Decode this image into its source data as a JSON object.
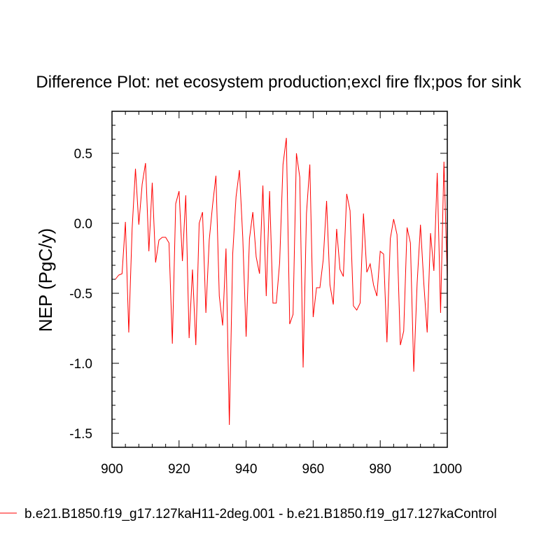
{
  "chart_data": {
    "type": "line",
    "title": "Difference Plot: net ecosystem production;excl fire flx;pos for sink",
    "xlabel": "",
    "ylabel": "NEP  (PgC/y)",
    "xlim": [
      900,
      1000
    ],
    "ylim": [
      -1.6,
      0.8
    ],
    "xticks": [
      900,
      920,
      940,
      960,
      980,
      1000
    ],
    "xtick_labels": [
      "900",
      "920",
      "940",
      "960",
      "980",
      "1000"
    ],
    "yticks": [
      -1.5,
      -1.0,
      -0.5,
      0.0,
      0.5
    ],
    "ytick_labels": [
      "-1.5",
      "-1.0",
      "-0.5",
      "0.0",
      "0.5"
    ],
    "grid": false,
    "legend_position": "bottom",
    "series": [
      {
        "name": "b.e21.B1850.f19_g17.127kaH11-2deg.001 - b.e21.B1850.f19_g17.127kaControl",
        "color": "#ff0000",
        "x": [
          901,
          902,
          903,
          904,
          905,
          906,
          907,
          908,
          909,
          910,
          911,
          912,
          913,
          914,
          915,
          916,
          917,
          918,
          919,
          920,
          921,
          922,
          923,
          924,
          925,
          926,
          927,
          928,
          929,
          930,
          931,
          932,
          933,
          934,
          935,
          936,
          937,
          938,
          939,
          940,
          941,
          942,
          943,
          944,
          945,
          946,
          947,
          948,
          949,
          950,
          951,
          952,
          953,
          954,
          955,
          956,
          957,
          958,
          959,
          960,
          961,
          962,
          963,
          964,
          965,
          966,
          967,
          968,
          969,
          970,
          971,
          972,
          973,
          974,
          975,
          976,
          977,
          978,
          979,
          980,
          981,
          982,
          983,
          984,
          985,
          986,
          987,
          988,
          989,
          990,
          991,
          992,
          993,
          994,
          995,
          996,
          997,
          998,
          999,
          1000
        ],
        "values": [
          -0.4,
          -0.37,
          -0.36,
          0.01,
          -0.78,
          -0.04,
          0.39,
          -0.01,
          0.28,
          0.43,
          -0.2,
          0.29,
          -0.28,
          -0.12,
          -0.1,
          -0.1,
          -0.14,
          -0.86,
          0.14,
          0.23,
          -0.27,
          0.2,
          -0.82,
          -0.33,
          -0.87,
          0.0,
          0.08,
          -0.64,
          -0.12,
          0.13,
          0.34,
          -0.52,
          -0.73,
          -0.18,
          -1.44,
          -0.22,
          0.19,
          0.38,
          -0.1,
          -0.81,
          -0.11,
          0.08,
          -0.24,
          -0.36,
          0.27,
          -0.52,
          0.23,
          -0.57,
          -0.57,
          -0.28,
          0.42,
          0.61,
          -0.72,
          -0.65,
          0.5,
          0.33,
          -1.03,
          0.07,
          0.42,
          -0.67,
          -0.46,
          -0.46,
          -0.26,
          0.16,
          -0.44,
          -0.58,
          -0.04,
          -0.33,
          -0.38,
          0.21,
          0.09,
          -0.59,
          -0.62,
          -0.57,
          0.07,
          -0.35,
          -0.29,
          -0.44,
          -0.52,
          -0.2,
          -0.22,
          -0.85,
          -0.11,
          0.03,
          -0.08,
          -0.87,
          -0.77,
          -0.03,
          -0.14,
          -1.06,
          -0.43,
          -0.01,
          -0.43,
          -0.78,
          -0.07,
          -0.34,
          0.36,
          -0.64,
          0.44,
          -0.4
        ]
      }
    ]
  }
}
